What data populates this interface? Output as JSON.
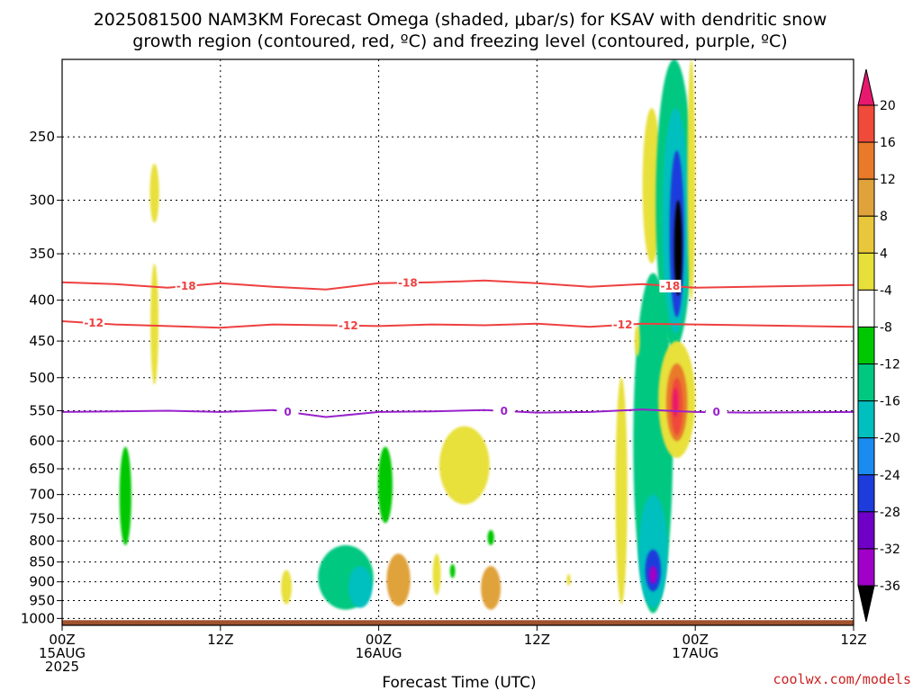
{
  "title_line1": "2025081500 NAM3KM Forecast Omega (shaded, μbar/s) for KSAV with dendritic snow",
  "title_line2": "growth region (contoured, red, ºC) and freezing level (contoured, purple, ºC)",
  "credit": "coolwx.com/models",
  "chart_data": {
    "type": "heatmap",
    "xlabel": "Forecast Time (UTC)",
    "ylabel": "",
    "x_range_hours": [
      0,
      60
    ],
    "y_range_hpa": [
      1020,
      200
    ],
    "y_ticks": [
      250,
      300,
      350,
      400,
      450,
      500,
      550,
      600,
      650,
      700,
      750,
      800,
      850,
      900,
      950,
      1000
    ],
    "x_ticks": [
      {
        "hour": 0,
        "lines": [
          "00Z",
          "15AUG",
          "2025"
        ]
      },
      {
        "hour": 12,
        "lines": [
          "12Z"
        ]
      },
      {
        "hour": 24,
        "lines": [
          "00Z",
          "16AUG"
        ]
      },
      {
        "hour": 36,
        "lines": [
          "12Z"
        ]
      },
      {
        "hour": 48,
        "lines": [
          "00Z",
          "17AUG"
        ]
      },
      {
        "hour": 60,
        "lines": [
          "12Z"
        ]
      }
    ],
    "grid": true,
    "colorbar": {
      "units": "μbar/s",
      "labels": [
        "20",
        "16",
        "12",
        "8",
        "4",
        "-4",
        "-8",
        "-12",
        "-16",
        "-20",
        "-24",
        "-28",
        "-32",
        "-36"
      ],
      "colors": [
        "#e8186e",
        "#f04a3a",
        "#e87a2a",
        "#e0a23a",
        "#e8c83a",
        "#e8e03a",
        "#ffffff",
        "#00c800",
        "#00c880",
        "#00bfbf",
        "#1a8cf0",
        "#1e3cdc",
        "#7000c8",
        "#a000c8",
        "#a0a0a0",
        "#000000"
      ]
    },
    "contours": [
      {
        "label": "-18",
        "color": "#ee4040",
        "pressure": [
          380,
          382,
          386,
          381,
          385,
          388,
          381,
          380,
          378,
          381,
          385,
          382,
          386,
          385,
          383
        ],
        "labels_at_hours": [
          9.4,
          26.2,
          46.1
        ]
      },
      {
        "label": "-12",
        "color": "#ee4040",
        "pressure": [
          425,
          429,
          431,
          433,
          429,
          430,
          431,
          429,
          430,
          428,
          432,
          428,
          429,
          430,
          432
        ],
        "labels_at_hours": [
          2.4,
          21.7,
          42.5
        ]
      },
      {
        "label": "0",
        "color": "#9922cc",
        "pressure": [
          552,
          551,
          550,
          552,
          549,
          560,
          552,
          551,
          549,
          553,
          552,
          548,
          552,
          553,
          552
        ],
        "labels_at_hours": [
          17.1,
          33.5,
          49.6
        ]
      }
    ],
    "hour_samples": [
      0,
      4,
      8,
      12,
      16,
      20,
      24,
      28,
      32,
      36,
      40,
      44,
      48,
      52,
      60
    ],
    "shaded_regions": [
      {
        "name": "upper-yellow-streak-h7",
        "hour": 7.0,
        "p_top": 270,
        "p_bot": 320,
        "halfwidth_h": 0.35,
        "value": 5
      },
      {
        "name": "mid-yellow-streak-h7",
        "hour": 7.0,
        "p_top": 360,
        "p_bot": 510,
        "halfwidth_h": 0.3,
        "value": 5
      },
      {
        "name": "green-streak-h5",
        "hour": 4.8,
        "p_top": 610,
        "p_bot": 810,
        "halfwidth_h": 0.45,
        "value": -6
      },
      {
        "name": "yellow-blob-h17",
        "hour": 17.0,
        "p_top": 870,
        "p_bot": 960,
        "halfwidth_h": 0.4,
        "value": 6
      },
      {
        "name": "green-cluster-h21",
        "hour": 21.5,
        "p_top": 810,
        "p_bot": 975,
        "halfwidth_h": 2.1,
        "value": -8
      },
      {
        "name": "cyan-core-h22",
        "hour": 22.6,
        "p_top": 860,
        "p_bot": 970,
        "halfwidth_h": 0.9,
        "value": -12
      },
      {
        "name": "green-streak-h24",
        "hour": 24.5,
        "p_top": 610,
        "p_bot": 760,
        "halfwidth_h": 0.55,
        "value": -6
      },
      {
        "name": "orange-blob-h25",
        "hour": 25.5,
        "p_top": 830,
        "p_bot": 965,
        "halfwidth_h": 0.9,
        "value": 9
      },
      {
        "name": "yellow-blob-h30",
        "hour": 30.5,
        "p_top": 575,
        "p_bot": 720,
        "halfwidth_h": 1.9,
        "value": 5
      },
      {
        "name": "yellow-small-h28",
        "hour": 28.4,
        "p_top": 830,
        "p_bot": 935,
        "halfwidth_h": 0.3,
        "value": 5
      },
      {
        "name": "green-dot-h29",
        "hour": 29.6,
        "p_top": 855,
        "p_bot": 890,
        "halfwidth_h": 0.2,
        "value": -6
      },
      {
        "name": "green-dot-h32",
        "hour": 32.5,
        "p_top": 775,
        "p_bot": 810,
        "halfwidth_h": 0.25,
        "value": -6
      },
      {
        "name": "orange-blob-h32",
        "hour": 32.5,
        "p_top": 860,
        "p_bot": 975,
        "halfwidth_h": 0.75,
        "value": 10
      },
      {
        "name": "yellow-dot-h38",
        "hour": 38.4,
        "p_top": 880,
        "p_bot": 910,
        "halfwidth_h": 0.15,
        "value": 5
      },
      {
        "name": "yellow-tall-h42",
        "hour": 42.4,
        "p_top": 500,
        "p_bot": 960,
        "halfwidth_h": 0.45,
        "value": 5
      },
      {
        "name": "yellow-top-h44",
        "hour": 44.7,
        "p_top": 230,
        "p_bot": 360,
        "halfwidth_h": 0.7,
        "value": 5
      },
      {
        "name": "green-column-h44",
        "hour": 44.8,
        "p_top": 370,
        "p_bot": 985,
        "halfwidth_h": 1.5,
        "value": -8
      },
      {
        "name": "cyan-column-h44",
        "hour": 44.8,
        "p_top": 700,
        "p_bot": 970,
        "halfwidth_h": 1.1,
        "value": -14
      },
      {
        "name": "blue-core-h44",
        "hour": 44.8,
        "p_top": 820,
        "p_bot": 925,
        "halfwidth_h": 0.6,
        "value": -22
      },
      {
        "name": "purple-core-h44",
        "hour": 44.8,
        "p_top": 860,
        "p_bot": 905,
        "halfwidth_h": 0.3,
        "value": -30
      },
      {
        "name": "green-top-h46",
        "hour": 46.4,
        "p_top": 200,
        "p_bot": 460,
        "halfwidth_h": 1.4,
        "value": -8
      },
      {
        "name": "cyan-top-h46",
        "hour": 46.5,
        "p_top": 230,
        "p_bot": 440,
        "halfwidth_h": 1.0,
        "value": -14
      },
      {
        "name": "blue-top-h46",
        "hour": 46.6,
        "p_top": 260,
        "p_bot": 420,
        "halfwidth_h": 0.55,
        "value": -20
      },
      {
        "name": "black-core-h46",
        "hour": 46.7,
        "p_top": 300,
        "p_bot": 395,
        "halfwidth_h": 0.3,
        "value": -36
      },
      {
        "name": "yellow-mid-h46",
        "hour": 46.6,
        "p_top": 450,
        "p_bot": 630,
        "halfwidth_h": 1.4,
        "value": 5
      },
      {
        "name": "orange-mid-h46",
        "hour": 46.6,
        "p_top": 480,
        "p_bot": 600,
        "halfwidth_h": 0.8,
        "value": 12
      },
      {
        "name": "red-mid-h46",
        "hour": 46.6,
        "p_top": 500,
        "p_bot": 590,
        "halfwidth_h": 0.45,
        "value": 16
      },
      {
        "name": "magenta-core-h46",
        "hour": 46.5,
        "p_top": 515,
        "p_bot": 560,
        "halfwidth_h": 0.2,
        "value": 20
      },
      {
        "name": "yellow-right-h47",
        "hour": 47.7,
        "p_top": 200,
        "p_bot": 400,
        "halfwidth_h": 0.3,
        "value": 5
      },
      {
        "name": "yellow-small-h43",
        "hour": 43.6,
        "p_top": 430,
        "p_bot": 470,
        "halfwidth_h": 0.2,
        "value": 5
      }
    ],
    "terrain_band": {
      "p_top": 1005,
      "p_bot": 1020,
      "color": "#a0522d"
    }
  }
}
